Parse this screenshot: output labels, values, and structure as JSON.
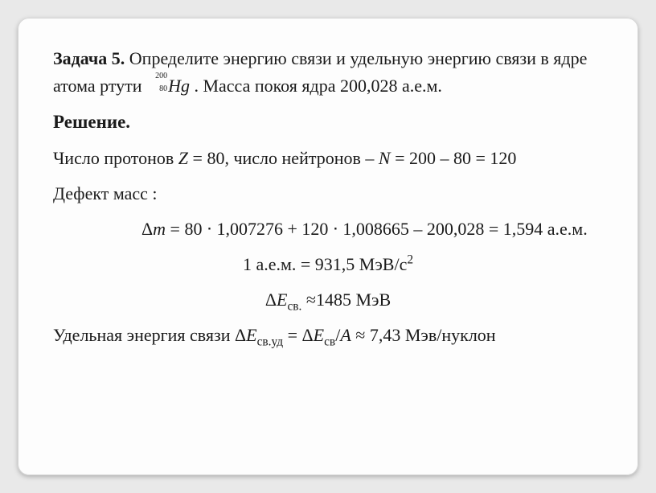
{
  "problem": {
    "label": "Задача 5.",
    "text_before": " Определите энергию связи и удельную энергию связи в ядре атома ртути ",
    "isotope_mass": "200",
    "isotope_atomic": "80",
    "isotope_symbol": "Hg",
    "text_after": " . Масса покоя ядра 200,028 а.е.м."
  },
  "solution": {
    "title": "Решение.",
    "protons_line_a": "Число протонов ",
    "protons_Z": "Z",
    "protons_line_b": " = 80, число нейтронов – ",
    "protons_N": "N",
    "protons_line_c": " = 200 – 80 = 120",
    "defect_label": "Дефект масс :",
    "defect_dm": "Δ",
    "defect_m": "m",
    "defect_expr": " = 80 ⋅ 1,007276 + 120 ⋅ 1,008665 – 200,028 = 1,594 а.е.м.",
    "unit_line_a": "1 а.е.м. = 931,5 МэВ/с",
    "unit_sup": "2",
    "energy_dE": "Δ",
    "energy_E": "E",
    "energy_sub": "св.",
    "energy_val": " ≈1485 МэВ",
    "specific_a": "Удельная энергия связи Δ",
    "specific_E1": "E",
    "specific_sub1": "св.уд",
    "specific_eq": " = Δ",
    "specific_E2": "E",
    "specific_sub2": "св",
    "specific_slash": "/",
    "specific_A": "A",
    "specific_val": " ≈ 7,43 Мэв/нуклон"
  }
}
